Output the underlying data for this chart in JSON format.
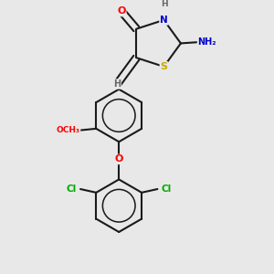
{
  "bg_color": "#e8e8e8",
  "bond_color": "#1a1a1a",
  "atom_colors": {
    "O": "#ff0000",
    "N": "#0000cc",
    "S": "#ccaa00",
    "Cl": "#00aa00",
    "H": "#666666",
    "C": "#1a1a1a"
  },
  "bond_lw": 1.5,
  "dbo": 0.018,
  "xlim": [
    0,
    3.0
  ],
  "ylim": [
    0,
    3.0
  ]
}
